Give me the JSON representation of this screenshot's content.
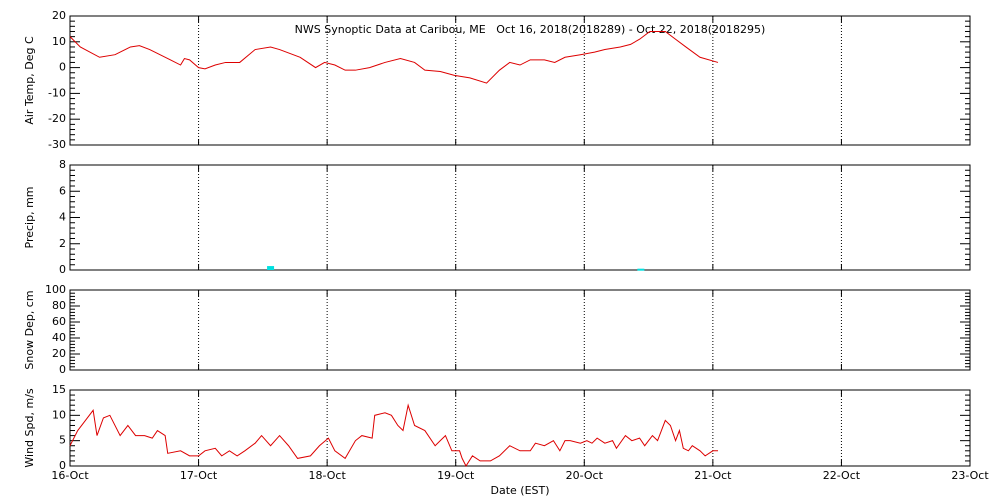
{
  "chart_data": [
    {
      "type": "line",
      "title": "NWS Synoptic Data at Caribou, ME   Oct 16, 2018(2018289) - Oct 22, 2018(2018295)",
      "ylabel": "Air Temp, Deg C",
      "ylim": [
        -30,
        20
      ],
      "yticks": [
        -30,
        -20,
        -10,
        0,
        10,
        20
      ],
      "xlim": [
        0,
        7
      ],
      "xticks": [
        0,
        1,
        2,
        3,
        4,
        5,
        6,
        7
      ],
      "grid": true,
      "series": [
        {
          "name": "Air Temp",
          "color": "#dd0000",
          "x": [
            0,
            0.08,
            0.23,
            0.35,
            0.47,
            0.54,
            0.62,
            0.78,
            0.86,
            0.89,
            0.93,
            1.0,
            1.05,
            1.13,
            1.21,
            1.32,
            1.44,
            1.56,
            1.63,
            1.79,
            1.91,
            1.98,
            2.06,
            2.14,
            2.22,
            2.33,
            2.45,
            2.57,
            2.68,
            2.76,
            2.88,
            2.99,
            3.11,
            3.24,
            3.34,
            3.42,
            3.5,
            3.58,
            3.69,
            3.77,
            3.85,
            3.97,
            4.08,
            4.16,
            4.28,
            4.36,
            4.43,
            4.51,
            4.63,
            4.71,
            4.79,
            4.9,
            5.04
          ],
          "values": [
            12,
            8,
            4,
            5,
            8,
            8.5,
            7,
            3,
            1,
            3.5,
            3,
            0,
            -0.5,
            1,
            2,
            2,
            7,
            8,
            7,
            4,
            0,
            2,
            1,
            -1,
            -1,
            0,
            2,
            3.5,
            2,
            -1,
            -1.5,
            -3,
            -4,
            -6,
            -1,
            2,
            1,
            3,
            3,
            2,
            4,
            5,
            6,
            7,
            8,
            9,
            11,
            14,
            14,
            11,
            8,
            4,
            2
          ]
        }
      ]
    },
    {
      "type": "bar",
      "ylabel": "Precip, mm",
      "ylim": [
        0,
        8
      ],
      "yticks": [
        0,
        2,
        4,
        6,
        8
      ],
      "xlim": [
        0,
        7
      ],
      "xticks": [
        0,
        1,
        2,
        3,
        4,
        5,
        6,
        7
      ],
      "grid": true,
      "series": [
        {
          "name": "Precip",
          "color": "#00e0e0",
          "x": [
            1.56,
            4.44
          ],
          "values": [
            0.3,
            0.1
          ]
        }
      ]
    },
    {
      "type": "line",
      "ylabel": "Snow Dep, cm",
      "ylim": [
        0,
        100
      ],
      "yticks": [
        0,
        20,
        40,
        60,
        80,
        100
      ],
      "xlim": [
        0,
        7
      ],
      "xticks": [
        0,
        1,
        2,
        3,
        4,
        5,
        6,
        7
      ],
      "grid": true,
      "series": []
    },
    {
      "type": "line",
      "ylabel": "Wind Spd, m/s",
      "xlabel": "Date (EST)",
      "ylim": [
        0,
        15
      ],
      "yticks": [
        0,
        5,
        10,
        15
      ],
      "xlim": [
        0,
        7
      ],
      "xticks": [
        {
          "value": 0,
          "label": "16-Oct"
        },
        {
          "value": 1,
          "label": "17-Oct"
        },
        {
          "value": 2,
          "label": "18-Oct"
        },
        {
          "value": 3,
          "label": "19-Oct"
        },
        {
          "value": 4,
          "label": "20-Oct"
        },
        {
          "value": 5,
          "label": "21-Oct"
        },
        {
          "value": 6,
          "label": "22-Oct"
        },
        {
          "value": 7,
          "label": "23-Oct"
        }
      ],
      "grid": true,
      "series": [
        {
          "name": "Wind Spd",
          "color": "#dd0000",
          "x": [
            0,
            0.06,
            0.12,
            0.18,
            0.21,
            0.26,
            0.31,
            0.39,
            0.45,
            0.51,
            0.58,
            0.64,
            0.68,
            0.74,
            0.76,
            0.86,
            0.93,
            1.0,
            1.05,
            1.13,
            1.18,
            1.24,
            1.3,
            1.36,
            1.44,
            1.49,
            1.56,
            1.63,
            1.7,
            1.77,
            1.87,
            1.94,
            2.01,
            2.06,
            2.14,
            2.22,
            2.27,
            2.35,
            2.37,
            2.45,
            2.5,
            2.55,
            2.59,
            2.63,
            2.68,
            2.76,
            2.84,
            2.88,
            2.92,
            2.97,
            3.03,
            3.05,
            3.08,
            3.13,
            3.19,
            3.27,
            3.34,
            3.42,
            3.5,
            3.58,
            3.62,
            3.69,
            3.76,
            3.81,
            3.85,
            3.89,
            3.97,
            4.02,
            4.06,
            4.1,
            4.16,
            4.22,
            4.25,
            4.32,
            4.37,
            4.43,
            4.47,
            4.53,
            4.57,
            4.63,
            4.67,
            4.71,
            4.74,
            4.77,
            4.81,
            4.84,
            4.9,
            4.94,
            5.0,
            5.04
          ],
          "values": [
            4,
            7,
            9,
            11,
            6,
            9.5,
            10,
            6,
            8,
            6,
            6,
            5.5,
            7,
            6,
            2.5,
            3,
            2,
            2,
            3,
            3.5,
            2,
            3,
            2,
            3,
            4.5,
            6,
            4,
            6,
            4,
            1.5,
            2,
            4,
            5.5,
            3,
            1.5,
            5,
            6,
            5.5,
            10,
            10.5,
            10,
            8,
            7,
            12,
            8,
            7,
            4,
            5,
            6,
            3,
            3,
            1.5,
            0,
            2,
            1,
            1,
            2,
            4,
            3,
            3,
            4.5,
            4,
            5,
            3,
            5,
            5,
            4.5,
            5,
            4.5,
            5.5,
            4.5,
            5,
            3.5,
            6,
            5,
            5.5,
            4,
            6,
            5,
            9,
            8,
            5,
            7,
            3.5,
            3,
            4,
            3,
            2,
            3,
            3
          ]
        }
      ]
    }
  ]
}
